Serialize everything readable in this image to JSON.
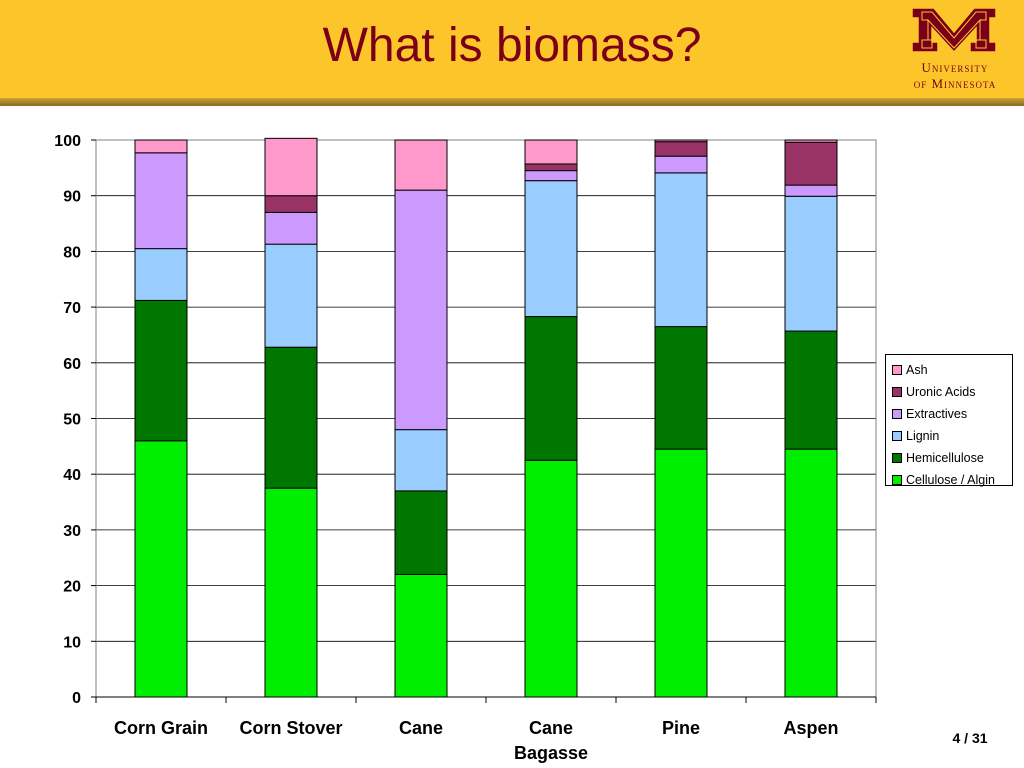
{
  "slide": {
    "title": "What is biomass?",
    "page_number": "4 / 31"
  },
  "logo": {
    "line1": "University",
    "line2": "of Minnesota",
    "color": "#7a0019"
  },
  "colors": {
    "header_band": "#fcc62a",
    "title": "#7a0019"
  },
  "chart_data": {
    "type": "bar",
    "stacked": true,
    "categories": [
      "Corn Grain",
      "Corn Stover",
      "Cane",
      "Cane\nBagasse",
      "Pine",
      "Aspen"
    ],
    "ylim": [
      0,
      100
    ],
    "yticks": [
      0,
      10,
      20,
      30,
      40,
      50,
      60,
      70,
      80,
      90,
      100
    ],
    "grid": true,
    "legend_position": "right",
    "series": [
      {
        "name": "Cellulose / Algin",
        "color": "#00ee00",
        "values": [
          46.0,
          37.5,
          22.0,
          42.5,
          44.5,
          44.5
        ]
      },
      {
        "name": "Hemicellulose",
        "color": "#007700",
        "values": [
          25.2,
          25.3,
          15.0,
          25.8,
          22.0,
          21.2
        ]
      },
      {
        "name": "Lignin",
        "color": "#99ccff",
        "values": [
          9.3,
          18.5,
          11.0,
          24.4,
          27.6,
          24.2
        ]
      },
      {
        "name": "Extractives",
        "color": "#cc99ff",
        "values": [
          17.2,
          5.7,
          43.0,
          1.8,
          3.0,
          2.0
        ]
      },
      {
        "name": "Uronic Acids",
        "color": "#993366",
        "values": [
          0.0,
          3.0,
          0.0,
          1.2,
          2.6,
          7.7
        ]
      },
      {
        "name": "Ash",
        "color": "#ff99cc",
        "values": [
          2.3,
          10.3,
          9.0,
          4.3,
          0.3,
          0.4
        ]
      }
    ],
    "legend_order": [
      "Ash",
      "Uronic Acids",
      "Extractives",
      "Lignin",
      "Hemicellulose",
      "Cellulose / Algin"
    ]
  }
}
